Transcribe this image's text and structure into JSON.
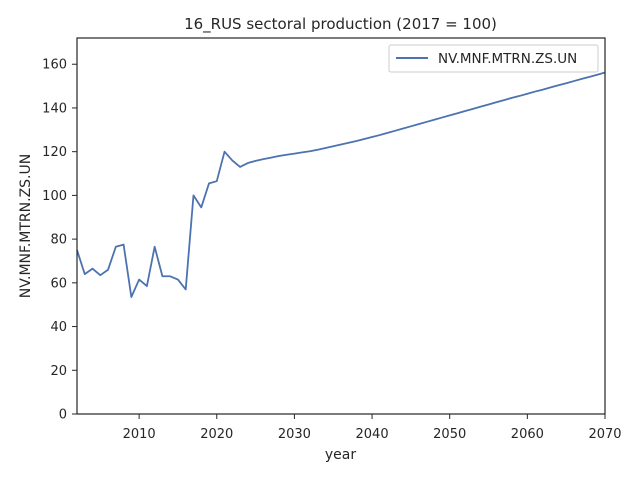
{
  "chart_data": {
    "type": "line",
    "title": "16_RUS sectoral production (2017 = 100)",
    "xlabel": "year",
    "ylabel": "NV.MNF.MTRN.ZS.UN",
    "xlim": [
      2002,
      2070
    ],
    "ylim": [
      0,
      172
    ],
    "xticks": [
      2010,
      2020,
      2030,
      2040,
      2050,
      2060,
      2070
    ],
    "yticks": [
      0,
      20,
      40,
      60,
      80,
      100,
      120,
      140,
      160
    ],
    "grid": false,
    "legend_position": "upper right",
    "series": [
      {
        "name": "NV.MNF.MTRN.ZS.UN",
        "color": "#4c72b0",
        "x": [
          2002,
          2003,
          2004,
          2005,
          2006,
          2007,
          2008,
          2009,
          2010,
          2011,
          2012,
          2013,
          2014,
          2015,
          2016,
          2017,
          2018,
          2019,
          2020,
          2021,
          2022,
          2023,
          2024,
          2025,
          2026,
          2027,
          2028,
          2029,
          2030,
          2031,
          2032,
          2033,
          2034,
          2035,
          2036,
          2037,
          2038,
          2039,
          2040,
          2041,
          2042,
          2043,
          2044,
          2045,
          2046,
          2047,
          2048,
          2049,
          2050,
          2051,
          2052,
          2053,
          2054,
          2055,
          2056,
          2057,
          2058,
          2059,
          2060,
          2061,
          2062,
          2063,
          2064,
          2065,
          2066,
          2067,
          2068,
          2069,
          2070
        ],
        "y": [
          75,
          64,
          66.5,
          63.5,
          66,
          76.5,
          77.5,
          53.5,
          61.5,
          58.5,
          76.5,
          63,
          63,
          61.5,
          57,
          100,
          94.5,
          105.5,
          106.5,
          120,
          116,
          113,
          114.8,
          115.8,
          116.6,
          117.3,
          118,
          118.6,
          119.1,
          119.7,
          120.2,
          120.9,
          121.7,
          122.5,
          123.3,
          124.1,
          124.9,
          125.8,
          126.7,
          127.6,
          128.6,
          129.6,
          130.6,
          131.6,
          132.6,
          133.6,
          134.6,
          135.6,
          136.6,
          137.6,
          138.6,
          139.6,
          140.6,
          141.6,
          142.6,
          143.6,
          144.6,
          145.5,
          146.5,
          147.5,
          148.4,
          149.4,
          150.4,
          151.3,
          152.3,
          153.3,
          154.2,
          155.2,
          156.2
        ]
      }
    ]
  }
}
